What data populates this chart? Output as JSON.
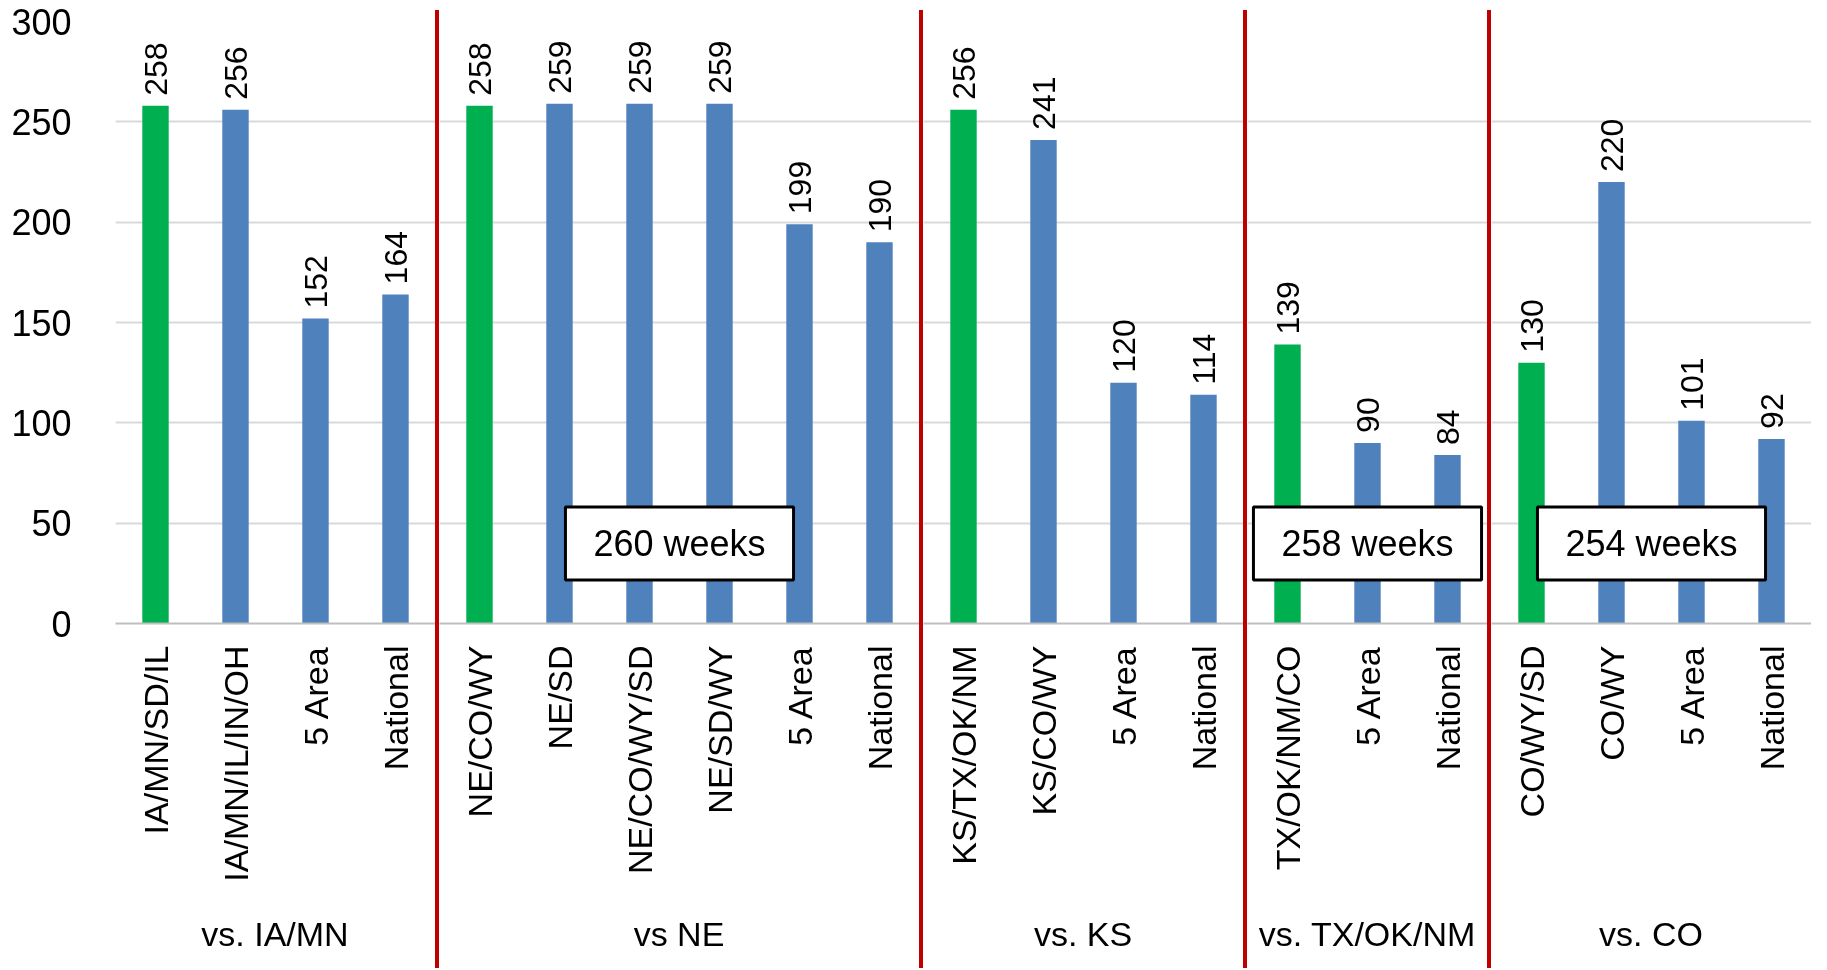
{
  "chart_data": [
    {
      "type": "bar",
      "categories": [
        "IA/MN/SD/IL",
        "IA/MN/IL/IN/OH",
        "5 Area",
        "National"
      ],
      "values": [
        258,
        256,
        152,
        164
      ],
      "colors": [
        "#00b050",
        "#4f81bd",
        "#4f81bd",
        "#4f81bd"
      ],
      "xlabel": "vs. IA/MN",
      "ylim": [
        0,
        300
      ],
      "yticks": [
        0,
        50,
        100,
        150,
        200,
        250,
        300
      ],
      "grid": "y",
      "data_labels": true
    },
    {
      "type": "bar",
      "categories": [
        "NE/CO/WY",
        "NE/SD",
        "NE/CO/WY/SD",
        "NE/SD/WY",
        "5 Area",
        "National"
      ],
      "values": [
        258,
        259,
        259,
        259,
        199,
        190
      ],
      "colors": [
        "#00b050",
        "#4f81bd",
        "#4f81bd",
        "#4f81bd",
        "#4f81bd",
        "#4f81bd"
      ],
      "xlabel": "vs NE",
      "ylim": [
        0,
        300
      ],
      "yticks": [
        0,
        50,
        100,
        150,
        200,
        250,
        300
      ],
      "grid": "y",
      "tick_labels": "x",
      "data_labels": true,
      "annotations": [
        "260 weeks"
      ]
    },
    {
      "type": "bar",
      "categories": [
        "KS/TX/OK/NM",
        "KS/CO/WY",
        "5 Area",
        "National"
      ],
      "values": [
        256,
        241,
        120,
        114
      ],
      "colors": [
        "#00b050",
        "#4f81bd",
        "#4f81bd",
        "#4f81bd"
      ],
      "xlabel": "vs. KS",
      "ylim": [
        0,
        300
      ],
      "yticks": [
        0,
        50,
        100,
        150,
        200,
        250,
        300
      ],
      "grid": "y",
      "tick_labels": "x",
      "data_labels": true
    },
    {
      "type": "bar",
      "categories": [
        "TX/OK/NM/CO",
        "5 Area",
        "National"
      ],
      "values": [
        139,
        90,
        84
      ],
      "colors": [
        "#00b050",
        "#4f81bd",
        "#4f81bd"
      ],
      "xlabel": "vs. TX/OK/NM",
      "ylim": [
        0,
        300
      ],
      "yticks": [
        0,
        50,
        100,
        150,
        200,
        250,
        300
      ],
      "grid": "y",
      "tick_labels": "x",
      "data_labels": true,
      "annotations": [
        "258 weeks"
      ]
    },
    {
      "type": "bar",
      "categories": [
        "CO/WY/SD",
        "CO/WY",
        "5 Area",
        "National"
      ],
      "values": [
        130,
        220,
        101,
        92
      ],
      "colors": [
        "#00b050",
        "#4f81bd",
        "#4f81bd",
        "#4f81bd"
      ],
      "xlabel": "vs. CO",
      "ylim": [
        0,
        300
      ],
      "yticks": [
        0,
        50,
        100,
        150,
        200,
        250,
        300
      ],
      "grid": "y",
      "tick_labels": "x",
      "data_labels": true,
      "annotations": [
        "254 weeks"
      ]
    }
  ]
}
